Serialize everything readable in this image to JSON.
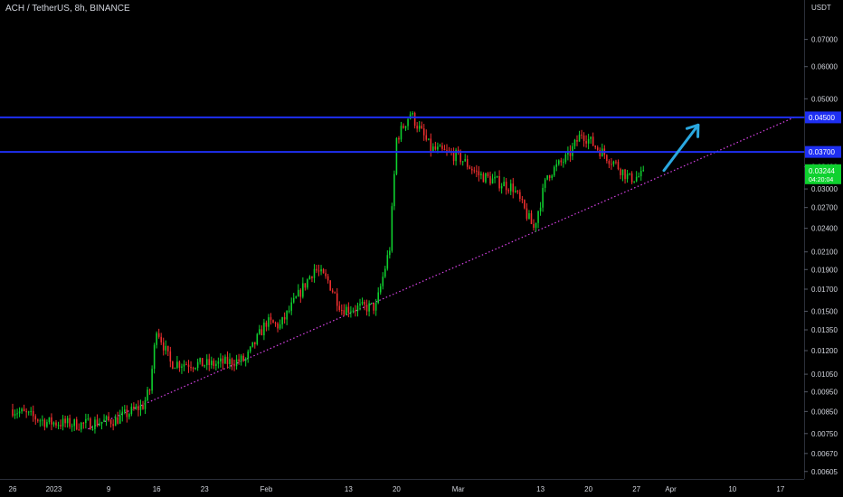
{
  "chart_data": {
    "type": "candlestick",
    "title": "ACH / TetherUS, 8h, BINANCE",
    "y_axis": {
      "unit": "USDT",
      "scale": "log",
      "ylim": [
        0.0058,
        0.079
      ],
      "ticks": [
        "0.07000",
        "0.06000",
        "0.05000",
        "0.04500",
        "0.03700",
        "0.03400",
        "0.03000",
        "0.02700",
        "0.02400",
        "0.02100",
        "0.01900",
        "0.01700",
        "0.01500",
        "0.01350",
        "0.01200",
        "0.01050",
        "0.00950",
        "0.00850",
        "0.00750",
        "0.00670",
        "0.00605"
      ],
      "tick_values": [
        0.07,
        0.06,
        0.05,
        0.045,
        0.037,
        0.034,
        0.03,
        0.027,
        0.024,
        0.021,
        0.019,
        0.017,
        0.015,
        0.0135,
        0.012,
        0.0105,
        0.0095,
        0.0085,
        0.0075,
        0.0067,
        0.00605
      ]
    },
    "x_axis": {
      "range": [
        "2022-12-26",
        "2023-04-19"
      ],
      "ticks": [
        {
          "date": "2022-12-26",
          "label": "26"
        },
        {
          "date": "2023-01-01",
          "label": "2023"
        },
        {
          "date": "2023-01-09",
          "label": "9"
        },
        {
          "date": "2023-01-16",
          "label": "16"
        },
        {
          "date": "2023-01-23",
          "label": "23"
        },
        {
          "date": "2023-02-01",
          "label": "Feb"
        },
        {
          "date": "2023-02-13",
          "label": "13"
        },
        {
          "date": "2023-02-20",
          "label": "20"
        },
        {
          "date": "2023-03-01",
          "label": "Mar"
        },
        {
          "date": "2023-03-13",
          "label": "13"
        },
        {
          "date": "2023-03-20",
          "label": "20"
        },
        {
          "date": "2023-03-27",
          "label": "27"
        },
        {
          "date": "2023-04-01",
          "label": "Apr"
        },
        {
          "date": "2023-04-10",
          "label": "10"
        },
        {
          "date": "2023-04-17",
          "label": "17"
        }
      ]
    },
    "price_path": {
      "start": "2022-12-26",
      "end": "2023-03-28",
      "keypoints": [
        [
          "2022-12-26",
          0.0086
        ],
        [
          "2022-12-31",
          0.008
        ],
        [
          "2023-01-05",
          0.0079
        ],
        [
          "2023-01-10",
          0.0081
        ],
        [
          "2023-01-14",
          0.0088
        ],
        [
          "2023-01-15",
          0.0096
        ],
        [
          "2023-01-16",
          0.0137
        ],
        [
          "2023-01-18",
          0.0112
        ],
        [
          "2023-01-24",
          0.0111
        ],
        [
          "2023-01-29",
          0.0114
        ],
        [
          "2023-02-01",
          0.0141
        ],
        [
          "2023-02-03",
          0.0138
        ],
        [
          "2023-02-08",
          0.0191
        ],
        [
          "2023-02-10",
          0.0178
        ],
        [
          "2023-02-12",
          0.0152
        ],
        [
          "2023-02-17",
          0.0154
        ],
        [
          "2023-02-19",
          0.0215
        ],
        [
          "2023-02-20",
          0.0398
        ],
        [
          "2023-02-22",
          0.0461
        ],
        [
          "2023-02-25",
          0.0377
        ],
        [
          "2023-03-01",
          0.0361
        ],
        [
          "2023-03-04",
          0.0325
        ],
        [
          "2023-03-09",
          0.0302
        ],
        [
          "2023-03-12",
          0.024
        ],
        [
          "2023-03-14",
          0.0325
        ],
        [
          "2023-03-17",
          0.036
        ],
        [
          "2023-03-19",
          0.0412
        ],
        [
          "2023-03-21",
          0.0382
        ],
        [
          "2023-03-24",
          0.0345
        ],
        [
          "2023-03-26",
          0.0318
        ],
        [
          "2023-03-28",
          0.0324
        ]
      ]
    },
    "horizontal_lines": [
      {
        "price": 0.045,
        "label": "0.04500",
        "color": "#1e2ff2"
      },
      {
        "price": 0.037,
        "label": "0.03700",
        "color": "#1e2ff2"
      }
    ],
    "trendline": {
      "from": {
        "date": "2023-01-06",
        "price": 0.0077
      },
      "to": {
        "date": "2023-04-19",
        "price": 0.045
      },
      "color": "#d943e8",
      "style": "dotted"
    },
    "arrow": {
      "from": {
        "date": "2023-03-31",
        "price": 0.0333
      },
      "to": {
        "date": "2023-04-05",
        "price": 0.0431
      },
      "color": "#2aa8e0"
    },
    "last_price": {
      "value": "0.03244",
      "countdown": "04:20:04",
      "color": "#0fd12f"
    },
    "colors": {
      "background": "#000000",
      "up": "#0fd12f",
      "down": "#ef2f2f",
      "text": "#d1d4dc",
      "label_box": "#1e2ff2"
    }
  }
}
